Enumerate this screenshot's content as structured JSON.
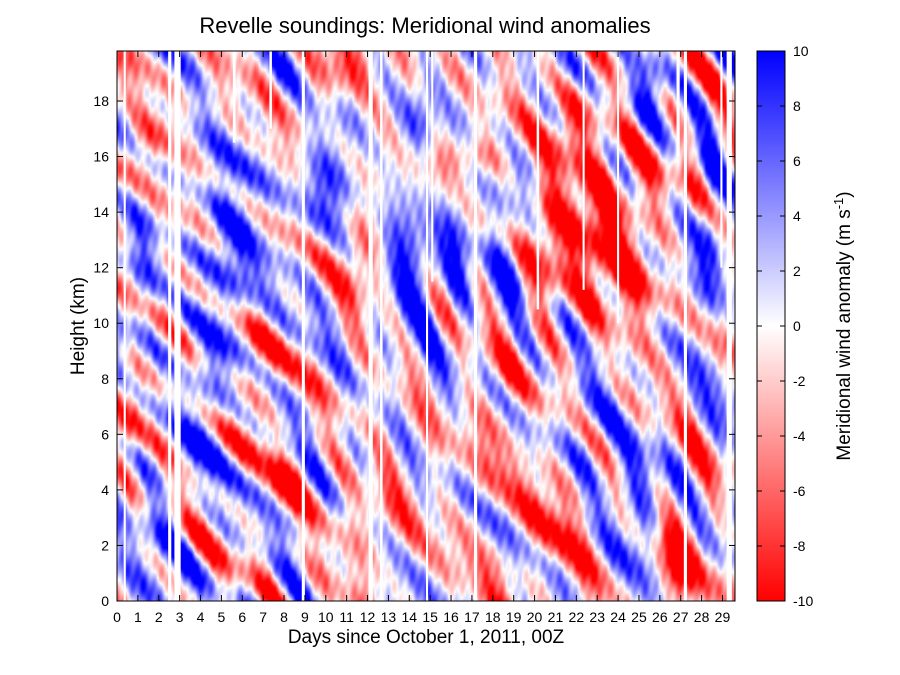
{
  "chart_data": {
    "type": "heatmap",
    "title": "Revelle soundings:  Meridional wind anomalies",
    "xlabel": "Days since October 1, 2011, 00Z",
    "ylabel": "Height (km)",
    "colorbar_label": "Meridional wind anomaly (m s",
    "colorbar_label_sup": "-1",
    "colorbar_label_end": ")",
    "xlim": [
      0,
      29.6
    ],
    "ylim": [
      0,
      19.8
    ],
    "x_ticks": [
      0,
      1,
      2,
      3,
      4,
      5,
      6,
      7,
      8,
      9,
      10,
      11,
      12,
      13,
      14,
      15,
      16,
      17,
      18,
      19,
      20,
      21,
      22,
      23,
      24,
      25,
      26,
      27,
      28,
      29
    ],
    "x_tick_labels": [
      "0",
      "1",
      "2",
      "3",
      "4",
      "5",
      "6",
      "7",
      "8",
      "9",
      "10",
      "11",
      "12",
      "13",
      "14",
      "15",
      "16",
      "17",
      "18",
      "19",
      "20",
      "21",
      "22",
      "23",
      "24",
      "25",
      "26",
      "27",
      "28",
      "29"
    ],
    "y_ticks": [
      0,
      2,
      4,
      6,
      8,
      10,
      12,
      14,
      16,
      18
    ],
    "y_tick_labels": [
      "0",
      "2",
      "4",
      "6",
      "8",
      "10",
      "12",
      "14",
      "16",
      "18"
    ],
    "colorbar_range": [
      -10,
      10
    ],
    "colorbar_ticks": [
      10,
      8,
      6,
      4,
      2,
      0,
      -2,
      -4,
      -6,
      -8,
      -10
    ],
    "colorbar_tick_labels": [
      "10",
      "8",
      "6",
      "4",
      "2",
      "0",
      "-2",
      "-4",
      "-6",
      "-8",
      "-10"
    ],
    "colormap": {
      "negative": "#ff0000",
      "zero": "#ffffff",
      "positive": "#0000ff"
    },
    "features": [
      {
        "day": 5.5,
        "height": 12.5,
        "value": 8,
        "sd": 1.0,
        "sh": 2.5
      },
      {
        "day": 4.3,
        "height": 7.0,
        "value": 6,
        "sd": 0.8,
        "sh": 1.5
      },
      {
        "day": 10.0,
        "height": 15.0,
        "value": 8,
        "sd": 0.8,
        "sh": 1.3
      },
      {
        "day": 11.7,
        "height": 12.5,
        "value": -6,
        "sd": 0.6,
        "sh": 1.3
      },
      {
        "day": 14.0,
        "height": 12.0,
        "value": 8,
        "sd": 0.8,
        "sh": 2.0
      },
      {
        "day": 16.3,
        "height": 13.0,
        "value": 7,
        "sd": 0.6,
        "sh": 2.0
      },
      {
        "day": 18.5,
        "height": 12.0,
        "value": 6,
        "sd": 0.6,
        "sh": 2.0
      },
      {
        "day": 20.6,
        "height": 13.0,
        "value": -8,
        "sd": 0.7,
        "sh": 2.0
      },
      {
        "day": 22.8,
        "height": 13.5,
        "value": -9,
        "sd": 1.0,
        "sh": 2.5
      },
      {
        "day": 24.8,
        "height": 13.0,
        "value": -7,
        "sd": 0.9,
        "sh": 2.5
      },
      {
        "day": 26.8,
        "height": 1.2,
        "value": -10,
        "sd": 0.7,
        "sh": 1.3
      },
      {
        "day": 28.4,
        "height": 13.0,
        "value": 8,
        "sd": 0.5,
        "sh": 2.0
      },
      {
        "day": 25.0,
        "height": 3.5,
        "value": 6,
        "sd": 0.8,
        "sh": 1.8
      },
      {
        "day": 6.5,
        "height": 8.0,
        "value": -5,
        "sd": 0.9,
        "sh": 1.5
      },
      {
        "day": 17.0,
        "height": 16.0,
        "value": -7,
        "sd": 1.5,
        "sh": 0.6
      },
      {
        "day": 1.5,
        "height": 16.5,
        "value": -6,
        "sd": 0.8,
        "sh": 0.7
      },
      {
        "day": 1.2,
        "height": 12.0,
        "value": 5,
        "sd": 0.5,
        "sh": 2.0
      },
      {
        "day": 25.5,
        "height": 18.5,
        "value": 8,
        "sd": 0.6,
        "sh": 1.2
      },
      {
        "day": 10.5,
        "height": 19.0,
        "value": -6,
        "sd": 1.0,
        "sh": 0.8
      },
      {
        "day": 14.5,
        "height": 17.5,
        "value": 6,
        "sd": 0.6,
        "sh": 1.0
      },
      {
        "day": 22.0,
        "height": 17.5,
        "value": -6,
        "sd": 0.6,
        "sh": 0.8
      },
      {
        "day": 20.5,
        "height": 2.5,
        "value": -5,
        "sd": 1.5,
        "sh": 1.5
      },
      {
        "day": 12.5,
        "height": 3.0,
        "value": -4,
        "sd": 1.2,
        "sh": 1.5
      },
      {
        "day": 8.0,
        "height": 4.0,
        "value": -5,
        "sd": 0.7,
        "sh": 0.8
      },
      {
        "day": 2.0,
        "height": 2.0,
        "value": 4,
        "sd": 1.0,
        "sh": 2.0
      },
      {
        "day": 0.7,
        "height": 7.0,
        "value": -5,
        "sd": 0.4,
        "sh": 1.5
      },
      {
        "day": 18.0,
        "height": 7.0,
        "value": -5,
        "sd": 0.8,
        "sh": 2.0
      },
      {
        "day": 23.0,
        "height": 7.0,
        "value": 4,
        "sd": 1.0,
        "sh": 2.0
      }
    ],
    "gaps": [
      [
        0.32,
        0.42
      ],
      [
        2.45,
        2.6
      ],
      [
        2.75,
        3.05
      ],
      [
        8.85,
        9.0
      ],
      [
        12.05,
        12.25
      ],
      [
        12.6,
        12.72
      ],
      [
        14.8,
        14.9
      ],
      [
        17.1,
        17.25
      ],
      [
        27.15,
        27.3
      ],
      [
        29.2,
        29.45
      ]
    ],
    "partial_gaps": [
      [
        5.55,
        5.68,
        16.5
      ],
      [
        7.3,
        7.42,
        17.0
      ],
      [
        15.05,
        15.15,
        11.5
      ],
      [
        20.1,
        20.22,
        10.5
      ],
      [
        22.3,
        22.4,
        11.2
      ],
      [
        23.95,
        24.05,
        10.0
      ],
      [
        26.8,
        26.95,
        16.0
      ],
      [
        28.9,
        29.0,
        12.0
      ]
    ]
  }
}
